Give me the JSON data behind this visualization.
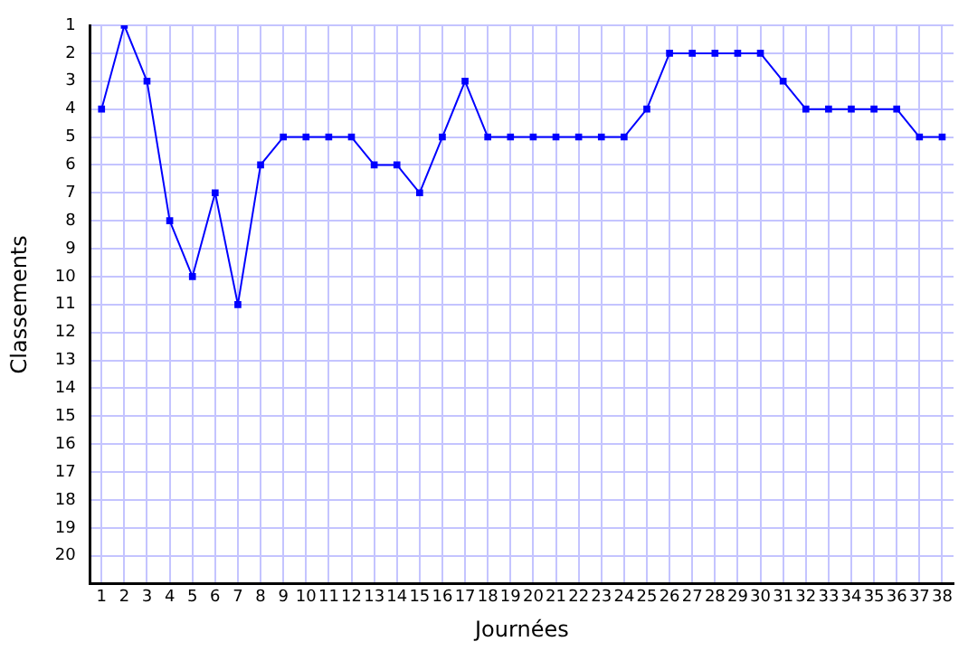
{
  "chart_data": {
    "type": "line",
    "xlabel": "Journées",
    "ylabel": "Classements",
    "x": [
      1,
      2,
      3,
      4,
      5,
      6,
      7,
      8,
      9,
      10,
      11,
      12,
      13,
      14,
      15,
      16,
      17,
      18,
      19,
      20,
      21,
      22,
      23,
      24,
      25,
      26,
      27,
      28,
      29,
      30,
      31,
      32,
      33,
      34,
      35,
      36,
      37,
      38
    ],
    "series": [
      {
        "color": "#0000ff",
        "values": [
          4,
          1,
          3,
          8,
          10,
          7,
          11,
          6,
          5,
          5,
          5,
          5,
          6,
          6,
          7,
          5,
          3,
          5,
          5,
          5,
          5,
          5,
          5,
          5,
          4,
          2,
          2,
          2,
          2,
          2,
          3,
          4,
          4,
          4,
          4,
          4,
          5,
          5
        ]
      }
    ],
    "xlim": [
      0.5,
      38.5
    ],
    "xticks": [
      1,
      2,
      3,
      4,
      5,
      6,
      7,
      8,
      9,
      10,
      11,
      12,
      13,
      14,
      15,
      16,
      17,
      18,
      19,
      20,
      21,
      22,
      23,
      24,
      25,
      26,
      27,
      28,
      29,
      30,
      31,
      32,
      33,
      34,
      35,
      36,
      37,
      38
    ],
    "ylim": [
      21,
      1
    ],
    "yticks": [
      1,
      2,
      3,
      4,
      5,
      6,
      7,
      8,
      9,
      10,
      11,
      12,
      13,
      14,
      15,
      16,
      17,
      18,
      19,
      20
    ],
    "grid": true,
    "legend": false,
    "marker": "square",
    "line_style": "solid"
  }
}
